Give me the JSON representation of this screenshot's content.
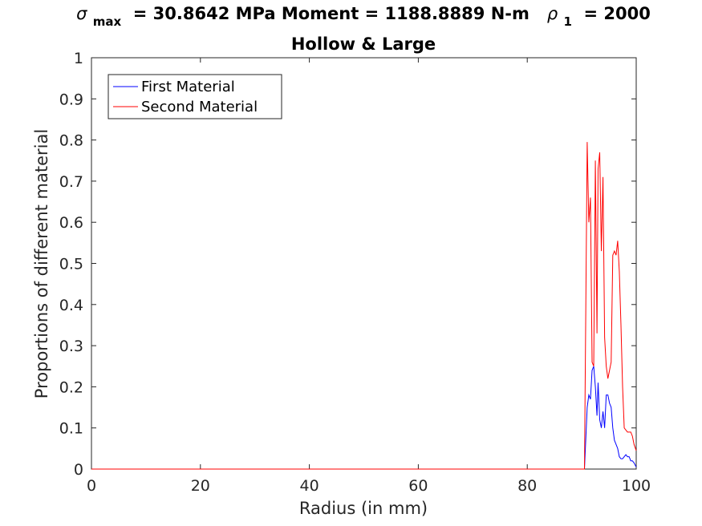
{
  "chart_data": {
    "type": "line",
    "title_parts": {
      "sigma_symbol": "σ",
      "sigma_sub": "max",
      "after_sigma": " = 30.8642 MPa Moment = 1188.8889 N-m  ",
      "rho_symbol": "ρ",
      "rho_sub": "1",
      "after_rho": " = 2000"
    },
    "subtitle": "Hollow & Large",
    "xlabel": "Radius (in mm)",
    "ylabel": "Proportions of different material",
    "xlim": [
      0,
      100
    ],
    "ylim": [
      0,
      1
    ],
    "x_ticks": [
      0,
      20,
      40,
      60,
      80,
      100
    ],
    "x_tick_labels": [
      "0",
      "20",
      "40",
      "60",
      "80",
      "100"
    ],
    "y_ticks": [
      0,
      0.1,
      0.2,
      0.3,
      0.4,
      0.5,
      0.6,
      0.7,
      0.8,
      0.9,
      1
    ],
    "y_tick_labels": [
      "0",
      "0.1",
      "0.2",
      "0.3",
      "0.4",
      "0.5",
      "0.6",
      "0.7",
      "0.8",
      "0.9",
      "1"
    ],
    "grid": false,
    "legend_position": "top-left",
    "series": [
      {
        "name": "First Material",
        "color": "#0000ff",
        "x": [
          0,
          90.5,
          91.0,
          91.3,
          91.6,
          91.9,
          92.2,
          92.5,
          92.8,
          93.0,
          93.3,
          93.6,
          93.9,
          94.2,
          94.5,
          94.8,
          95.1,
          95.4,
          95.7,
          96.0,
          96.3,
          96.6,
          96.9,
          97.2,
          97.5,
          97.8,
          98.1,
          98.4,
          98.7,
          99.0,
          99.3,
          99.6,
          100
        ],
        "y": [
          0,
          0,
          0.15,
          0.18,
          0.17,
          0.24,
          0.25,
          0.2,
          0.13,
          0.21,
          0.12,
          0.1,
          0.14,
          0.1,
          0.18,
          0.18,
          0.16,
          0.15,
          0.1,
          0.07,
          0.06,
          0.05,
          0.03,
          0.025,
          0.025,
          0.03,
          0.035,
          0.03,
          0.03,
          0.02,
          0.02,
          0.015,
          0.005
        ]
      },
      {
        "name": "Second Material",
        "color": "#ff0000",
        "x": [
          0,
          90.5,
          91.0,
          91.3,
          91.6,
          91.9,
          92.2,
          92.5,
          92.8,
          93.0,
          93.3,
          93.6,
          93.9,
          94.2,
          94.5,
          94.8,
          95.1,
          95.4,
          95.7,
          96.0,
          96.3,
          96.6,
          96.9,
          97.2,
          97.5,
          97.8,
          98.1,
          98.4,
          98.7,
          99.0,
          99.3,
          99.6,
          100
        ],
        "y": [
          0,
          0,
          0.795,
          0.6,
          0.66,
          0.26,
          0.25,
          0.75,
          0.33,
          0.73,
          0.77,
          0.53,
          0.71,
          0.32,
          0.25,
          0.22,
          0.24,
          0.26,
          0.52,
          0.53,
          0.52,
          0.555,
          0.48,
          0.35,
          0.2,
          0.1,
          0.095,
          0.09,
          0.09,
          0.09,
          0.08,
          0.06,
          0.045
        ]
      }
    ]
  }
}
